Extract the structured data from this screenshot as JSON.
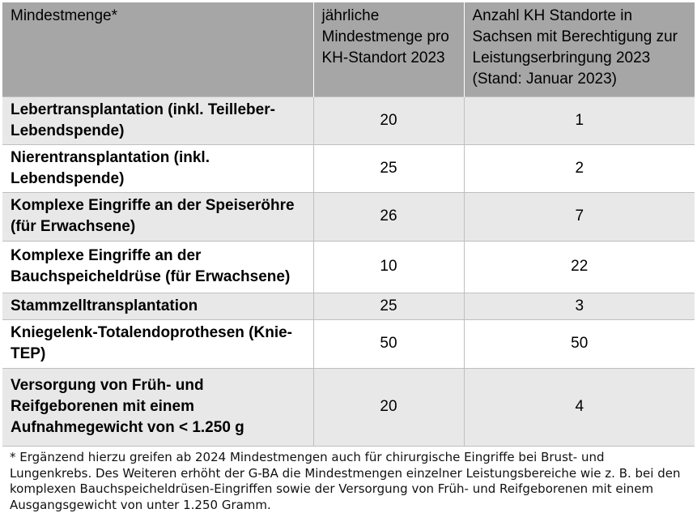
{
  "table": {
    "headers": [
      "Mindestmenge*",
      "jährliche Mindestmenge pro KH-Standort 2023",
      "Anzahl KH Standorte in Sachsen mit Berechtigung zur Leistungserbringung 2023 (Stand: Januar 2023)"
    ],
    "rows": [
      {
        "procedure": "Lebertransplantation (inkl. Teilleber-Lebendspende)",
        "mindestmenge": "20",
        "standorte": "1"
      },
      {
        "procedure": "Nierentransplantation (inkl. Lebendspende)",
        "mindestmenge": "25",
        "standorte": "2"
      },
      {
        "procedure": "Komplexe Eingriffe an der Speiseröhre (für Erwachsene)",
        "mindestmenge": "26",
        "standorte": "7"
      },
      {
        "procedure": "Komplexe Eingriffe an der Bauchspeicheldrüse (für Erwachsene)",
        "mindestmenge": "10",
        "standorte": "22"
      },
      {
        "procedure": "Stammzelltransplantation",
        "mindestmenge": "25",
        "standorte": "3"
      },
      {
        "procedure": "Kniegelenk-Totalendoprothesen (Knie-TEP)",
        "mindestmenge": "50",
        "standorte": "50"
      },
      {
        "procedure": "Versorgung von Früh- und Reifgeborenen mit einem Aufnahmegewicht von < 1.250 g",
        "mindestmenge": "20",
        "standorte": "4"
      }
    ]
  },
  "footnote": "* Ergänzend hierzu greifen ab 2024 Mindestmengen auch für chirurgische Eingriffe bei Brust- und Lungenkrebs. Des Weiteren erhöht der G-BA die Mindestmengen einzelner Leistungsbereiche wie z. B. bei den komplexen Bauchspeicheldrüsen-Eingriffen sowie der Versorgung von Früh- und Reifgeborenen mit einem Ausgangsgewicht von unter 1.250 Gramm."
}
